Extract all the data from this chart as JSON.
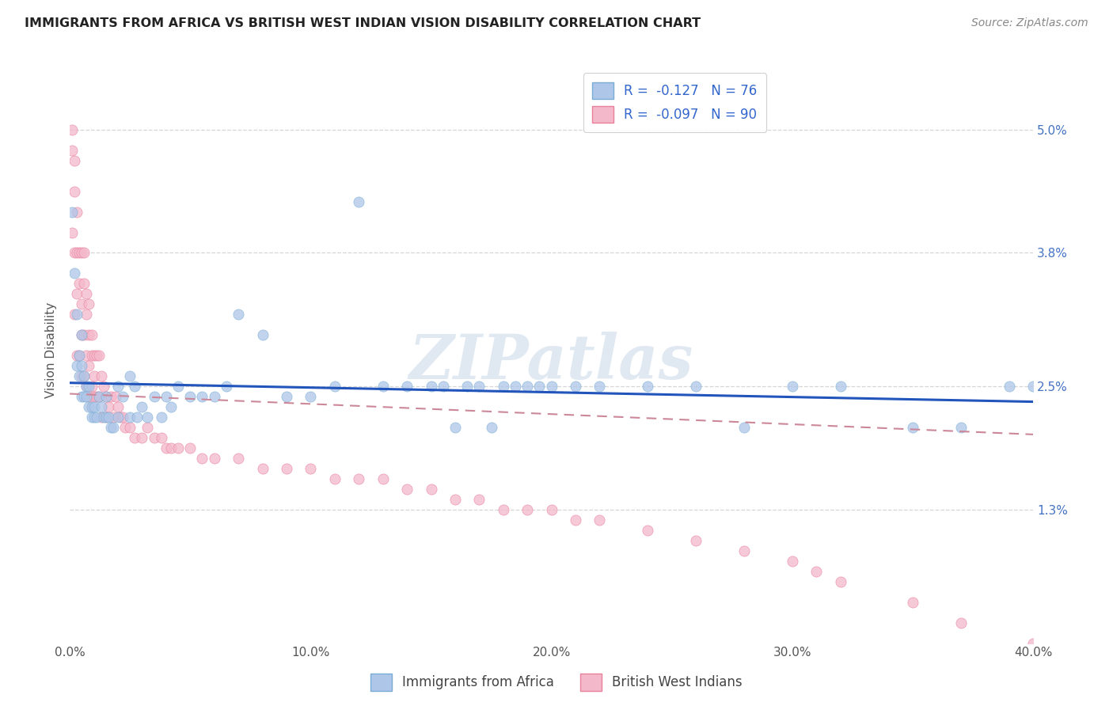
{
  "title": "IMMIGRANTS FROM AFRICA VS BRITISH WEST INDIAN VISION DISABILITY CORRELATION CHART",
  "source": "Source: ZipAtlas.com",
  "ylabel": "Vision Disability",
  "xlim": [
    0.0,
    0.4
  ],
  "ylim": [
    0.0,
    0.057
  ],
  "x_tick_vals": [
    0.0,
    0.1,
    0.2,
    0.3,
    0.4
  ],
  "x_tick_labels": [
    "0.0%",
    "10.0%",
    "20.0%",
    "30.0%",
    "40.0%"
  ],
  "y_ticks": [
    0.013,
    0.025,
    0.038,
    0.05
  ],
  "y_tick_labels": [
    "1.3%",
    "2.5%",
    "3.8%",
    "5.0%"
  ],
  "africa_R": -0.127,
  "africa_N": 76,
  "bwi_R": -0.097,
  "bwi_N": 90,
  "africa_color": "#aec6e8",
  "africa_edge": "#7aadd4",
  "bwi_color": "#f4b8cb",
  "bwi_edge": "#e8809a",
  "africa_line_color": "#2255bb",
  "bwi_line_color": "#cc8899",
  "watermark": "ZIPatlas",
  "legend_labels": [
    "Immigrants from Africa",
    "British West Indians"
  ],
  "africa_x": [
    0.001,
    0.002,
    0.003,
    0.003,
    0.004,
    0.004,
    0.005,
    0.005,
    0.005,
    0.006,
    0.006,
    0.007,
    0.007,
    0.008,
    0.008,
    0.009,
    0.009,
    0.01,
    0.01,
    0.011,
    0.012,
    0.013,
    0.014,
    0.015,
    0.015,
    0.016,
    0.017,
    0.018,
    0.02,
    0.02,
    0.022,
    0.025,
    0.025,
    0.027,
    0.028,
    0.03,
    0.032,
    0.035,
    0.038,
    0.04,
    0.042,
    0.045,
    0.05,
    0.055,
    0.06,
    0.065,
    0.07,
    0.08,
    0.09,
    0.1,
    0.11,
    0.12,
    0.13,
    0.14,
    0.15,
    0.155,
    0.16,
    0.165,
    0.17,
    0.175,
    0.18,
    0.185,
    0.19,
    0.195,
    0.2,
    0.21,
    0.22,
    0.24,
    0.26,
    0.28,
    0.3,
    0.32,
    0.35,
    0.37,
    0.39,
    0.4
  ],
  "africa_y": [
    0.042,
    0.036,
    0.032,
    0.027,
    0.028,
    0.026,
    0.03,
    0.027,
    0.024,
    0.026,
    0.024,
    0.025,
    0.024,
    0.025,
    0.023,
    0.023,
    0.022,
    0.022,
    0.023,
    0.022,
    0.024,
    0.023,
    0.022,
    0.022,
    0.024,
    0.022,
    0.021,
    0.021,
    0.025,
    0.022,
    0.024,
    0.026,
    0.022,
    0.025,
    0.022,
    0.023,
    0.022,
    0.024,
    0.022,
    0.024,
    0.023,
    0.025,
    0.024,
    0.024,
    0.024,
    0.025,
    0.032,
    0.03,
    0.024,
    0.024,
    0.025,
    0.043,
    0.025,
    0.025,
    0.025,
    0.025,
    0.021,
    0.025,
    0.025,
    0.021,
    0.025,
    0.025,
    0.025,
    0.025,
    0.025,
    0.025,
    0.025,
    0.025,
    0.025,
    0.021,
    0.025,
    0.025,
    0.021,
    0.021,
    0.025,
    0.025
  ],
  "bwi_x": [
    0.001,
    0.001,
    0.001,
    0.002,
    0.002,
    0.002,
    0.002,
    0.003,
    0.003,
    0.003,
    0.003,
    0.004,
    0.004,
    0.004,
    0.005,
    0.005,
    0.005,
    0.005,
    0.006,
    0.006,
    0.006,
    0.006,
    0.007,
    0.007,
    0.007,
    0.007,
    0.008,
    0.008,
    0.008,
    0.008,
    0.009,
    0.009,
    0.009,
    0.01,
    0.01,
    0.01,
    0.011,
    0.011,
    0.012,
    0.012,
    0.013,
    0.013,
    0.014,
    0.015,
    0.015,
    0.016,
    0.017,
    0.018,
    0.019,
    0.02,
    0.021,
    0.022,
    0.023,
    0.025,
    0.027,
    0.03,
    0.032,
    0.035,
    0.038,
    0.04,
    0.042,
    0.045,
    0.05,
    0.055,
    0.06,
    0.07,
    0.08,
    0.09,
    0.1,
    0.11,
    0.12,
    0.13,
    0.14,
    0.15,
    0.16,
    0.17,
    0.18,
    0.19,
    0.2,
    0.21,
    0.22,
    0.24,
    0.26,
    0.28,
    0.3,
    0.31,
    0.32,
    0.35,
    0.37,
    0.4
  ],
  "bwi_y": [
    0.05,
    0.048,
    0.04,
    0.047,
    0.044,
    0.038,
    0.032,
    0.042,
    0.038,
    0.034,
    0.028,
    0.038,
    0.035,
    0.028,
    0.038,
    0.033,
    0.03,
    0.026,
    0.038,
    0.035,
    0.03,
    0.026,
    0.034,
    0.032,
    0.028,
    0.025,
    0.033,
    0.03,
    0.027,
    0.024,
    0.03,
    0.028,
    0.025,
    0.028,
    0.026,
    0.024,
    0.028,
    0.024,
    0.028,
    0.024,
    0.026,
    0.022,
    0.025,
    0.024,
    0.022,
    0.023,
    0.024,
    0.022,
    0.024,
    0.023,
    0.022,
    0.022,
    0.021,
    0.021,
    0.02,
    0.02,
    0.021,
    0.02,
    0.02,
    0.019,
    0.019,
    0.019,
    0.019,
    0.018,
    0.018,
    0.018,
    0.017,
    0.017,
    0.017,
    0.016,
    0.016,
    0.016,
    0.015,
    0.015,
    0.014,
    0.014,
    0.013,
    0.013,
    0.013,
    0.012,
    0.012,
    0.011,
    0.01,
    0.009,
    0.008,
    0.007,
    0.006,
    0.004,
    0.002,
    0.0
  ]
}
